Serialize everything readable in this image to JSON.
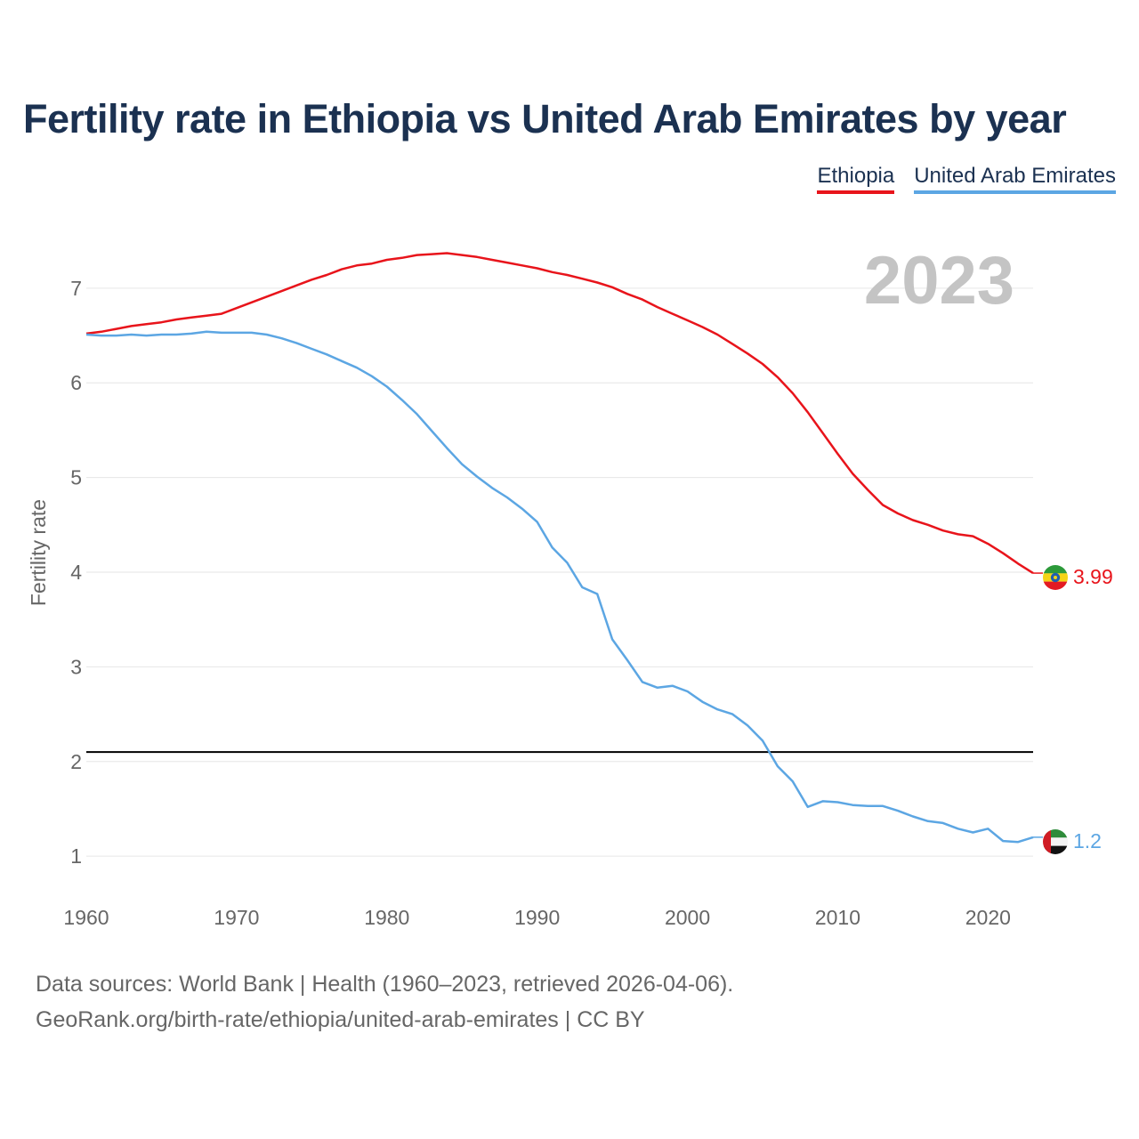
{
  "chart_data": {
    "type": "line",
    "title": "Fertility rate in Ethiopia vs United Arab Emirates by year",
    "ylabel": "Fertility rate",
    "xlabel": "",
    "xlim": [
      1960,
      2023
    ],
    "ylim": [
      0.55,
      7.45
    ],
    "yticks": [
      1,
      2,
      3,
      4,
      5,
      6,
      7
    ],
    "xticks": [
      1960,
      1970,
      1980,
      1990,
      2000,
      2010,
      2020
    ],
    "year_label": "2023",
    "reference_line": {
      "y": 2.1,
      "color": "#000000"
    },
    "x": [
      1960,
      1961,
      1962,
      1963,
      1964,
      1965,
      1966,
      1967,
      1968,
      1969,
      1970,
      1971,
      1972,
      1973,
      1974,
      1975,
      1976,
      1977,
      1978,
      1979,
      1980,
      1981,
      1982,
      1983,
      1984,
      1985,
      1986,
      1987,
      1988,
      1989,
      1990,
      1991,
      1992,
      1993,
      1994,
      1995,
      1996,
      1997,
      1998,
      1999,
      2000,
      2001,
      2002,
      2003,
      2004,
      2005,
      2006,
      2007,
      2008,
      2009,
      2010,
      2011,
      2012,
      2013,
      2014,
      2015,
      2016,
      2017,
      2018,
      2019,
      2020,
      2021,
      2022,
      2023
    ],
    "series": [
      {
        "name": "Ethiopia",
        "color": "#e8141b",
        "end_label": "3.99",
        "flag": "ethiopia-flag",
        "values": [
          6.52,
          6.54,
          6.57,
          6.6,
          6.62,
          6.64,
          6.67,
          6.69,
          6.71,
          6.73,
          6.79,
          6.85,
          6.91,
          6.97,
          7.03,
          7.09,
          7.14,
          7.2,
          7.24,
          7.26,
          7.3,
          7.32,
          7.35,
          7.36,
          7.37,
          7.35,
          7.33,
          7.3,
          7.27,
          7.24,
          7.21,
          7.17,
          7.14,
          7.1,
          7.06,
          7.01,
          6.94,
          6.88,
          6.8,
          6.73,
          6.66,
          6.59,
          6.51,
          6.41,
          6.31,
          6.2,
          6.06,
          5.89,
          5.69,
          5.47,
          5.25,
          5.04,
          4.87,
          4.71,
          4.62,
          4.55,
          4.5,
          4.44,
          4.4,
          4.38,
          4.3,
          4.2,
          4.09,
          3.99
        ]
      },
      {
        "name": "United Arab Emirates",
        "color": "#5ca6e3",
        "end_label": "1.2",
        "flag": "uae-flag",
        "values": [
          6.51,
          6.5,
          6.5,
          6.51,
          6.5,
          6.51,
          6.51,
          6.52,
          6.54,
          6.53,
          6.53,
          6.53,
          6.51,
          6.47,
          6.42,
          6.36,
          6.3,
          6.23,
          6.16,
          6.07,
          5.96,
          5.82,
          5.67,
          5.49,
          5.31,
          5.14,
          5.01,
          4.89,
          4.79,
          4.67,
          4.53,
          4.26,
          4.1,
          3.84,
          3.77,
          3.29,
          3.07,
          2.84,
          2.78,
          2.8,
          2.74,
          2.63,
          2.55,
          2.5,
          2.38,
          2.22,
          1.95,
          1.79,
          1.52,
          1.58,
          1.57,
          1.54,
          1.53,
          1.53,
          1.48,
          1.42,
          1.37,
          1.35,
          1.29,
          1.25,
          1.29,
          1.16,
          1.15,
          1.2
        ]
      }
    ]
  },
  "footer": {
    "line1": "Data sources: World Bank | Health (1960–2023, retrieved 2026-04-06).",
    "line2": "GeoRank.org/birth-rate/ethiopia/united-arab-emirates | CC BY"
  }
}
